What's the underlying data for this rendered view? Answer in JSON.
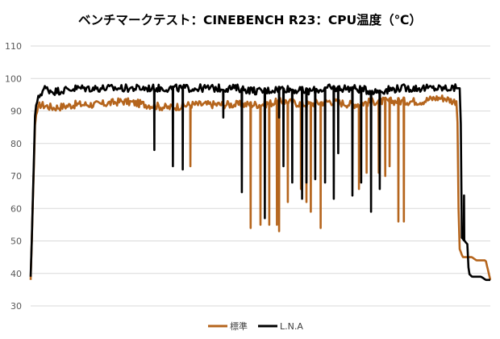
{
  "chart_data": {
    "type": "line",
    "title": "ベンチマークテスト：CINEBENCH R23：CPU温度（℃）",
    "xlabel": "",
    "ylabel": "",
    "ylim": [
      30,
      110
    ],
    "yticks": [
      30,
      40,
      50,
      60,
      70,
      80,
      90,
      100,
      110
    ],
    "xlim": [
      0,
      100
    ],
    "grid": "horizontal",
    "legend_position": "bottom",
    "series": [
      {
        "name": "標準",
        "color": "#b5651d",
        "base": [
          [
            0,
            38
          ],
          [
            1,
            88
          ],
          [
            2,
            92
          ],
          [
            5,
            91
          ],
          [
            10,
            92
          ],
          [
            15,
            92
          ],
          [
            20,
            93
          ],
          [
            25,
            92
          ],
          [
            30,
            91
          ],
          [
            35,
            92
          ],
          [
            40,
            92
          ],
          [
            45,
            92
          ],
          [
            50,
            92
          ],
          [
            55,
            93
          ],
          [
            60,
            92
          ],
          [
            65,
            93
          ],
          [
            70,
            92
          ],
          [
            75,
            93
          ],
          [
            80,
            93
          ],
          [
            85,
            93
          ],
          [
            88,
            94
          ],
          [
            90,
            94
          ],
          [
            92,
            93
          ],
          [
            92.8,
            93
          ],
          [
            93.2,
            48
          ],
          [
            94,
            45
          ],
          [
            96,
            45
          ],
          [
            97,
            44
          ],
          [
            98,
            44
          ],
          [
            99,
            44
          ],
          [
            100,
            38
          ]
        ],
        "dips": [
          [
            34.8,
            73
          ],
          [
            47.9,
            54
          ],
          [
            50.1,
            55
          ],
          [
            51.9,
            55
          ],
          [
            53.5,
            55
          ],
          [
            54,
            53
          ],
          [
            56,
            62
          ],
          [
            58.7,
            66
          ],
          [
            60,
            62
          ],
          [
            61,
            59
          ],
          [
            63,
            54
          ],
          [
            70,
            85
          ],
          [
            71.5,
            66
          ],
          [
            73.2,
            71
          ],
          [
            75.8,
            71
          ],
          [
            77.2,
            70
          ],
          [
            78,
            73
          ],
          [
            80,
            56
          ],
          [
            81.3,
            56
          ]
        ]
      },
      {
        "name": "L.N.A",
        "color": "#000000",
        "base": [
          [
            0,
            39
          ],
          [
            0.3,
            53
          ],
          [
            1,
            91
          ],
          [
            2,
            95
          ],
          [
            3,
            97
          ],
          [
            5,
            96
          ],
          [
            10,
            97
          ],
          [
            15,
            97
          ],
          [
            20,
            97
          ],
          [
            25,
            97
          ],
          [
            30,
            97
          ],
          [
            35,
            97
          ],
          [
            40,
            97
          ],
          [
            45,
            97
          ],
          [
            50,
            96
          ],
          [
            55,
            97
          ],
          [
            60,
            96
          ],
          [
            65,
            97
          ],
          [
            70,
            97
          ],
          [
            75,
            96
          ],
          [
            80,
            97
          ],
          [
            85,
            97
          ],
          [
            88,
            97
          ],
          [
            92,
            97
          ],
          [
            93.5,
            97
          ],
          [
            93.8,
            51
          ],
          [
            95,
            49
          ],
          [
            95.3,
            40
          ],
          [
            96,
            39
          ],
          [
            98,
            39
          ],
          [
            99,
            38
          ],
          [
            100,
            38
          ]
        ],
        "dips": [
          [
            27,
            78
          ],
          [
            31,
            73
          ],
          [
            33,
            72
          ],
          [
            42,
            88
          ],
          [
            46,
            65
          ],
          [
            51,
            57
          ],
          [
            54,
            88
          ],
          [
            55,
            73
          ],
          [
            57,
            68
          ],
          [
            59,
            63
          ],
          [
            60,
            68
          ],
          [
            62,
            69
          ],
          [
            64,
            68
          ],
          [
            66,
            63
          ],
          [
            67,
            77
          ],
          [
            70,
            64
          ],
          [
            72,
            68
          ],
          [
            74,
            59
          ],
          [
            76,
            66
          ],
          [
            94.2,
            64
          ]
        ]
      }
    ]
  }
}
